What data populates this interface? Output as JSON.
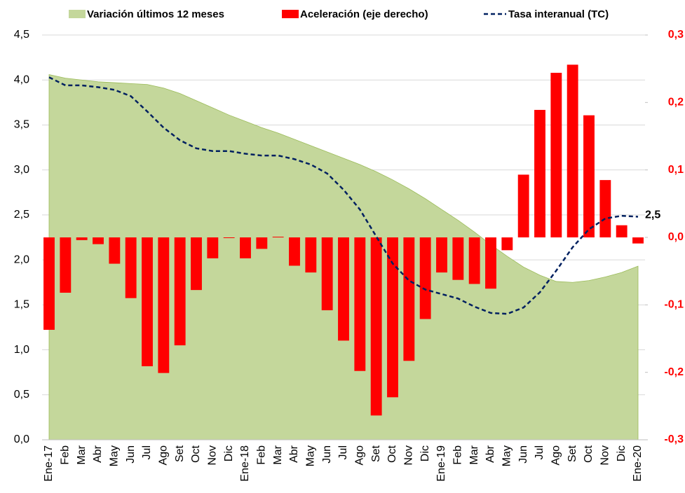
{
  "chart_data": {
    "type": "combo",
    "categories": [
      "Ene-17",
      "Feb",
      "Mar",
      "Abr",
      "May",
      "Jun",
      "Jul",
      "Ago",
      "Set",
      "Oct",
      "Nov",
      "Dic",
      "Ene-18",
      "Feb",
      "Mar",
      "Abr",
      "May",
      "Jun",
      "Jul",
      "Ago",
      "Set",
      "Oct",
      "Nov",
      "Dic",
      "Ene-19",
      "Feb",
      "Mar",
      "Abr",
      "May",
      "Jun",
      "Jul",
      "Ago",
      "Set",
      "Oct",
      "Nov",
      "Dic",
      "Ene-20"
    ],
    "series": [
      {
        "name": "Variación últimos 12 meses",
        "type": "area",
        "color": "#c4d79b",
        "values": [
          4.06,
          4.02,
          4.0,
          3.98,
          3.97,
          3.96,
          3.95,
          3.91,
          3.85,
          3.77,
          3.69,
          3.61,
          3.54,
          3.47,
          3.41,
          3.34,
          3.27,
          3.2,
          3.13,
          3.06,
          2.98,
          2.89,
          2.79,
          2.68,
          2.56,
          2.44,
          2.31,
          2.17,
          2.04,
          1.92,
          1.83,
          1.76,
          1.75,
          1.77,
          1.81,
          1.86,
          1.93
        ]
      },
      {
        "name": "Aceleración (eje derecho)",
        "type": "bar",
        "color": "#ff0000",
        "axis": "y2",
        "values": [
          -0.137,
          -0.082,
          -0.004,
          -0.01,
          -0.039,
          -0.09,
          -0.191,
          -0.201,
          -0.16,
          -0.078,
          -0.031,
          -0.001,
          -0.031,
          -0.017,
          0.001,
          -0.042,
          -0.052,
          -0.108,
          -0.153,
          -0.198,
          -0.264,
          -0.237,
          -0.183,
          -0.121,
          -0.052,
          -0.063,
          -0.069,
          -0.076,
          -0.019,
          0.093,
          0.189,
          0.244,
          0.256,
          0.181,
          0.085,
          0.018,
          -0.009
        ]
      },
      {
        "name": "Tasa interanual (TC)",
        "type": "line",
        "color": "#002060",
        "values": [
          4.03,
          3.94,
          3.94,
          3.92,
          3.89,
          3.82,
          3.65,
          3.47,
          3.33,
          3.24,
          3.21,
          3.21,
          3.18,
          3.16,
          3.16,
          3.12,
          3.06,
          2.96,
          2.78,
          2.56,
          2.26,
          1.96,
          1.77,
          1.67,
          1.62,
          1.57,
          1.48,
          1.41,
          1.4,
          1.47,
          1.64,
          1.88,
          2.14,
          2.34,
          2.46,
          2.49,
          2.48
        ],
        "value_labels": [
          null,
          null,
          null,
          null,
          null,
          null,
          null,
          null,
          null,
          null,
          null,
          null,
          null,
          null,
          null,
          null,
          null,
          null,
          null,
          null,
          null,
          null,
          null,
          null,
          null,
          null,
          null,
          null,
          null,
          null,
          null,
          null,
          null,
          null,
          null,
          null,
          "2,5"
        ]
      }
    ],
    "ylim": [
      0,
      4.5
    ],
    "yticks": [
      {
        "value": 0,
        "label": "0,0"
      },
      {
        "value": 0.5,
        "label": "0,5"
      },
      {
        "value": 1,
        "label": "1,0"
      },
      {
        "value": 1.5,
        "label": "1,5"
      },
      {
        "value": 2,
        "label": "2,0"
      },
      {
        "value": 2.5,
        "label": "2,5"
      },
      {
        "value": 3,
        "label": "3,0"
      },
      {
        "value": 3.5,
        "label": "3,5"
      },
      {
        "value": 4,
        "label": "4,0"
      },
      {
        "value": 4.5,
        "label": "4,5"
      }
    ],
    "y2lim": [
      -0.3,
      0.3
    ],
    "y2ticks": [
      {
        "value": -0.3,
        "label": "-0,3"
      },
      {
        "value": -0.2,
        "label": "-0,2"
      },
      {
        "value": -0.1,
        "label": "-0,1"
      },
      {
        "value": 0,
        "label": "0,0"
      },
      {
        "value": 0.1,
        "label": "0,1"
      },
      {
        "value": 0.2,
        "label": "0,2"
      },
      {
        "value": 0.3,
        "label": "0,3"
      }
    ],
    "grid": true,
    "legend": "top"
  }
}
